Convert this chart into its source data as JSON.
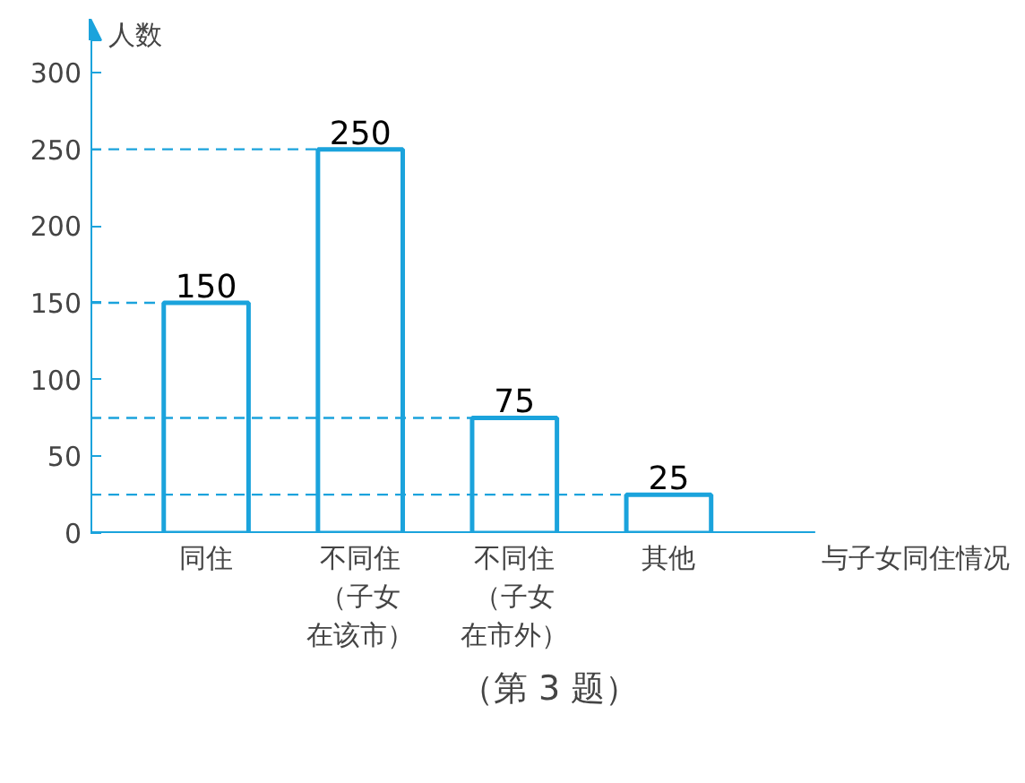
{
  "chart_data": {
    "type": "bar",
    "categories": [
      "同住",
      "不同住（子女在该市）",
      "不同住（子女在市外）",
      "其他"
    ],
    "values": [
      150,
      250,
      75,
      25
    ],
    "color": "#1ba3dc",
    "ylim": [
      0,
      335
    ],
    "yticks": [
      0,
      50,
      100,
      150,
      200,
      250,
      300
    ],
    "xlabel": "与子女同住情况",
    "ylabel": "人数",
    "data_labels": true,
    "grid": false,
    "ref_lines": [
      {
        "axis": "y",
        "value": 250,
        "line_style": "dashed"
      },
      {
        "axis": "y",
        "value": 150,
        "line_style": "dashed"
      },
      {
        "axis": "y",
        "value": 75,
        "line_style": "dashed"
      },
      {
        "axis": "y",
        "value": 25,
        "line_style": "dashed"
      }
    ],
    "annotations": [
      "（第 3 题）"
    ]
  }
}
